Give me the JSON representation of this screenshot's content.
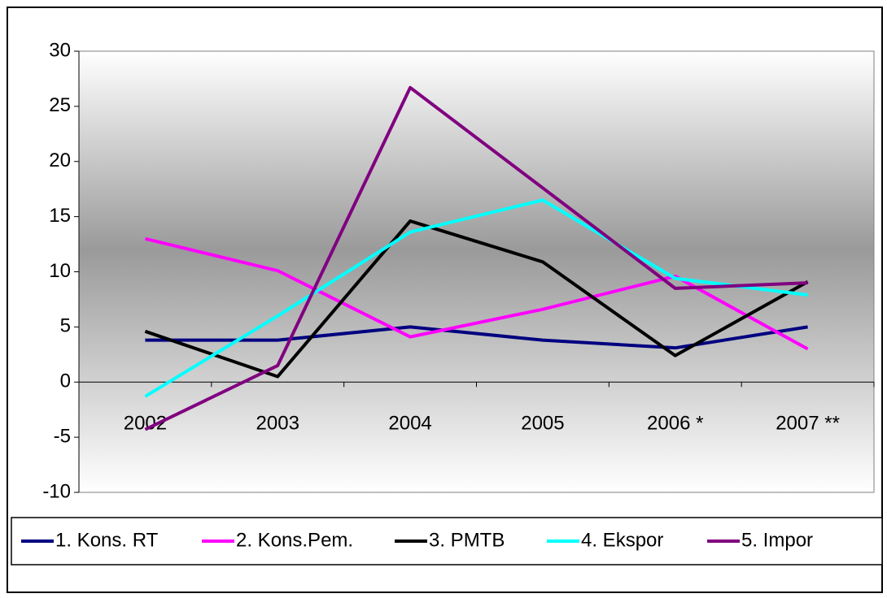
{
  "chart_data": {
    "type": "line",
    "categories": [
      "2002",
      "2003",
      "2004",
      "2005",
      "2006 *",
      "2007 **"
    ],
    "series": [
      {
        "name": "1. Kons. RT",
        "color": "#000080",
        "values": [
          3.8,
          3.8,
          5.0,
          3.8,
          3.1,
          5.0
        ]
      },
      {
        "name": "2. Kons.Pem.",
        "color": "#ff00ff",
        "values": [
          13.0,
          10.1,
          4.1,
          6.6,
          9.6,
          3.0
        ]
      },
      {
        "name": "3. PMTB",
        "color": "#000000",
        "values": [
          4.6,
          0.5,
          14.6,
          10.9,
          2.4,
          9.1
        ]
      },
      {
        "name": "4. Ekspor",
        "color": "#00ffff",
        "values": [
          -1.3,
          6.0,
          13.6,
          16.5,
          9.4,
          7.9
        ]
      },
      {
        "name": "5. Impor",
        "color": "#800080",
        "values": [
          -4.3,
          1.5,
          26.7,
          17.6,
          8.5,
          9.0
        ]
      }
    ],
    "ylim": [
      -10,
      30
    ],
    "yticks": [
      -10,
      -5,
      0,
      5,
      10,
      15,
      20,
      25,
      30
    ],
    "legend": "bottom"
  }
}
